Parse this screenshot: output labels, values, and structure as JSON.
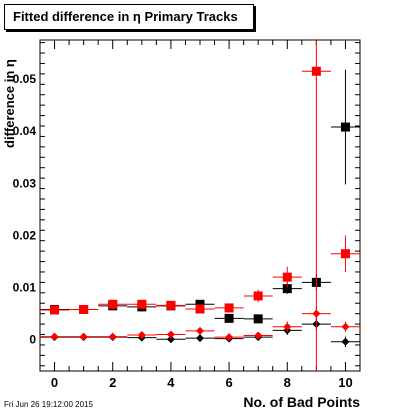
{
  "chart_data": {
    "type": "scatter",
    "title": "Fitted difference in  η Primary Tracks",
    "xlabel": "No. of Bad Points",
    "ylabel": "difference in  η",
    "xlim": [
      -0.5,
      10.5
    ],
    "ylim": [
      -0.006,
      0.0575
    ],
    "x_ticks": [
      "0",
      "2",
      "4",
      "6",
      "8",
      "10"
    ],
    "y_ticks": [
      "0",
      "0.01",
      "0.02",
      "0.03",
      "0.04",
      "0.05"
    ],
    "grid": false,
    "series": [
      {
        "marker": "square",
        "color": "#000000",
        "points": [
          {
            "x": 0,
            "y": 0.0058,
            "err": 0.0004
          },
          {
            "x": 1,
            "y": 0.0058,
            "err": 0.0004
          },
          {
            "x": 2,
            "y": 0.0065,
            "err": 0.0005
          },
          {
            "x": 3,
            "y": 0.0063,
            "err": 0.0005
          },
          {
            "x": 4,
            "y": 0.0065,
            "err": 0.0005
          },
          {
            "x": 5,
            "y": 0.0068,
            "err": 0.0006
          },
          {
            "x": 6,
            "y": 0.0041,
            "err": 0.0007
          },
          {
            "x": 7,
            "y": 0.004,
            "err": 0.0008
          },
          {
            "x": 8,
            "y": 0.0098,
            "err": 0.001
          },
          {
            "x": 9,
            "y": 0.011,
            "err": 0.0015
          },
          {
            "x": 10,
            "y": 0.0408,
            "err": 0.011
          }
        ]
      },
      {
        "marker": "diamond",
        "color": "#000000",
        "points": [
          {
            "x": 0,
            "y": 0.0005,
            "err": 0.0004
          },
          {
            "x": 1,
            "y": 0.0005,
            "err": 0.0004
          },
          {
            "x": 2,
            "y": 0.0005,
            "err": 0.0004
          },
          {
            "x": 3,
            "y": 0.0004,
            "err": 0.0004
          },
          {
            "x": 4,
            "y": 0.0001,
            "err": 0.0005
          },
          {
            "x": 5,
            "y": 0.0003,
            "err": 0.0005
          },
          {
            "x": 6,
            "y": 0.0002,
            "err": 0.0005
          },
          {
            "x": 7,
            "y": 0.0005,
            "err": 0.0006
          },
          {
            "x": 8,
            "y": 0.0018,
            "err": 0.0009
          },
          {
            "x": 9,
            "y": 0.003,
            "err": 0.0012
          },
          {
            "x": 10,
            "y": -0.0004,
            "err": 0.001
          }
        ]
      },
      {
        "marker": "square",
        "color": "#ff0000",
        "points": [
          {
            "x": 0,
            "y": 0.0057,
            "err": 0.0004
          },
          {
            "x": 1,
            "y": 0.0058,
            "err": 0.0004
          },
          {
            "x": 2,
            "y": 0.0068,
            "err": 0.0005
          },
          {
            "x": 3,
            "y": 0.0068,
            "err": 0.0005
          },
          {
            "x": 4,
            "y": 0.0066,
            "err": 0.0005
          },
          {
            "x": 5,
            "y": 0.0059,
            "err": 0.0006
          },
          {
            "x": 6,
            "y": 0.0061,
            "err": 0.0007
          },
          {
            "x": 7,
            "y": 0.0084,
            "err": 0.0012
          },
          {
            "x": 8,
            "y": 0.012,
            "err": 0.002
          },
          {
            "x": 9,
            "y": 0.0515,
            "err": 0.06
          },
          {
            "x": 10,
            "y": 0.0165,
            "err": 0.0035
          }
        ]
      },
      {
        "marker": "diamond",
        "color": "#ff0000",
        "points": [
          {
            "x": 0,
            "y": 0.0006,
            "err": 0.0003
          },
          {
            "x": 1,
            "y": 0.0006,
            "err": 0.0003
          },
          {
            "x": 2,
            "y": 0.0006,
            "err": 0.0003
          },
          {
            "x": 3,
            "y": 0.0009,
            "err": 0.0004
          },
          {
            "x": 4,
            "y": 0.001,
            "err": 0.0004
          },
          {
            "x": 5,
            "y": 0.0017,
            "err": 0.0005
          },
          {
            "x": 6,
            "y": 0.0005,
            "err": 0.0005
          },
          {
            "x": 7,
            "y": 0.0008,
            "err": 0.0006
          },
          {
            "x": 8,
            "y": 0.0025,
            "err": 0.001
          },
          {
            "x": 9,
            "y": 0.005,
            "err": 0.0012
          },
          {
            "x": 10,
            "y": 0.0025,
            "err": 0.001
          }
        ]
      }
    ]
  },
  "footer": {
    "datestamp": "Fri Jun 26 19:12:00 2015"
  }
}
